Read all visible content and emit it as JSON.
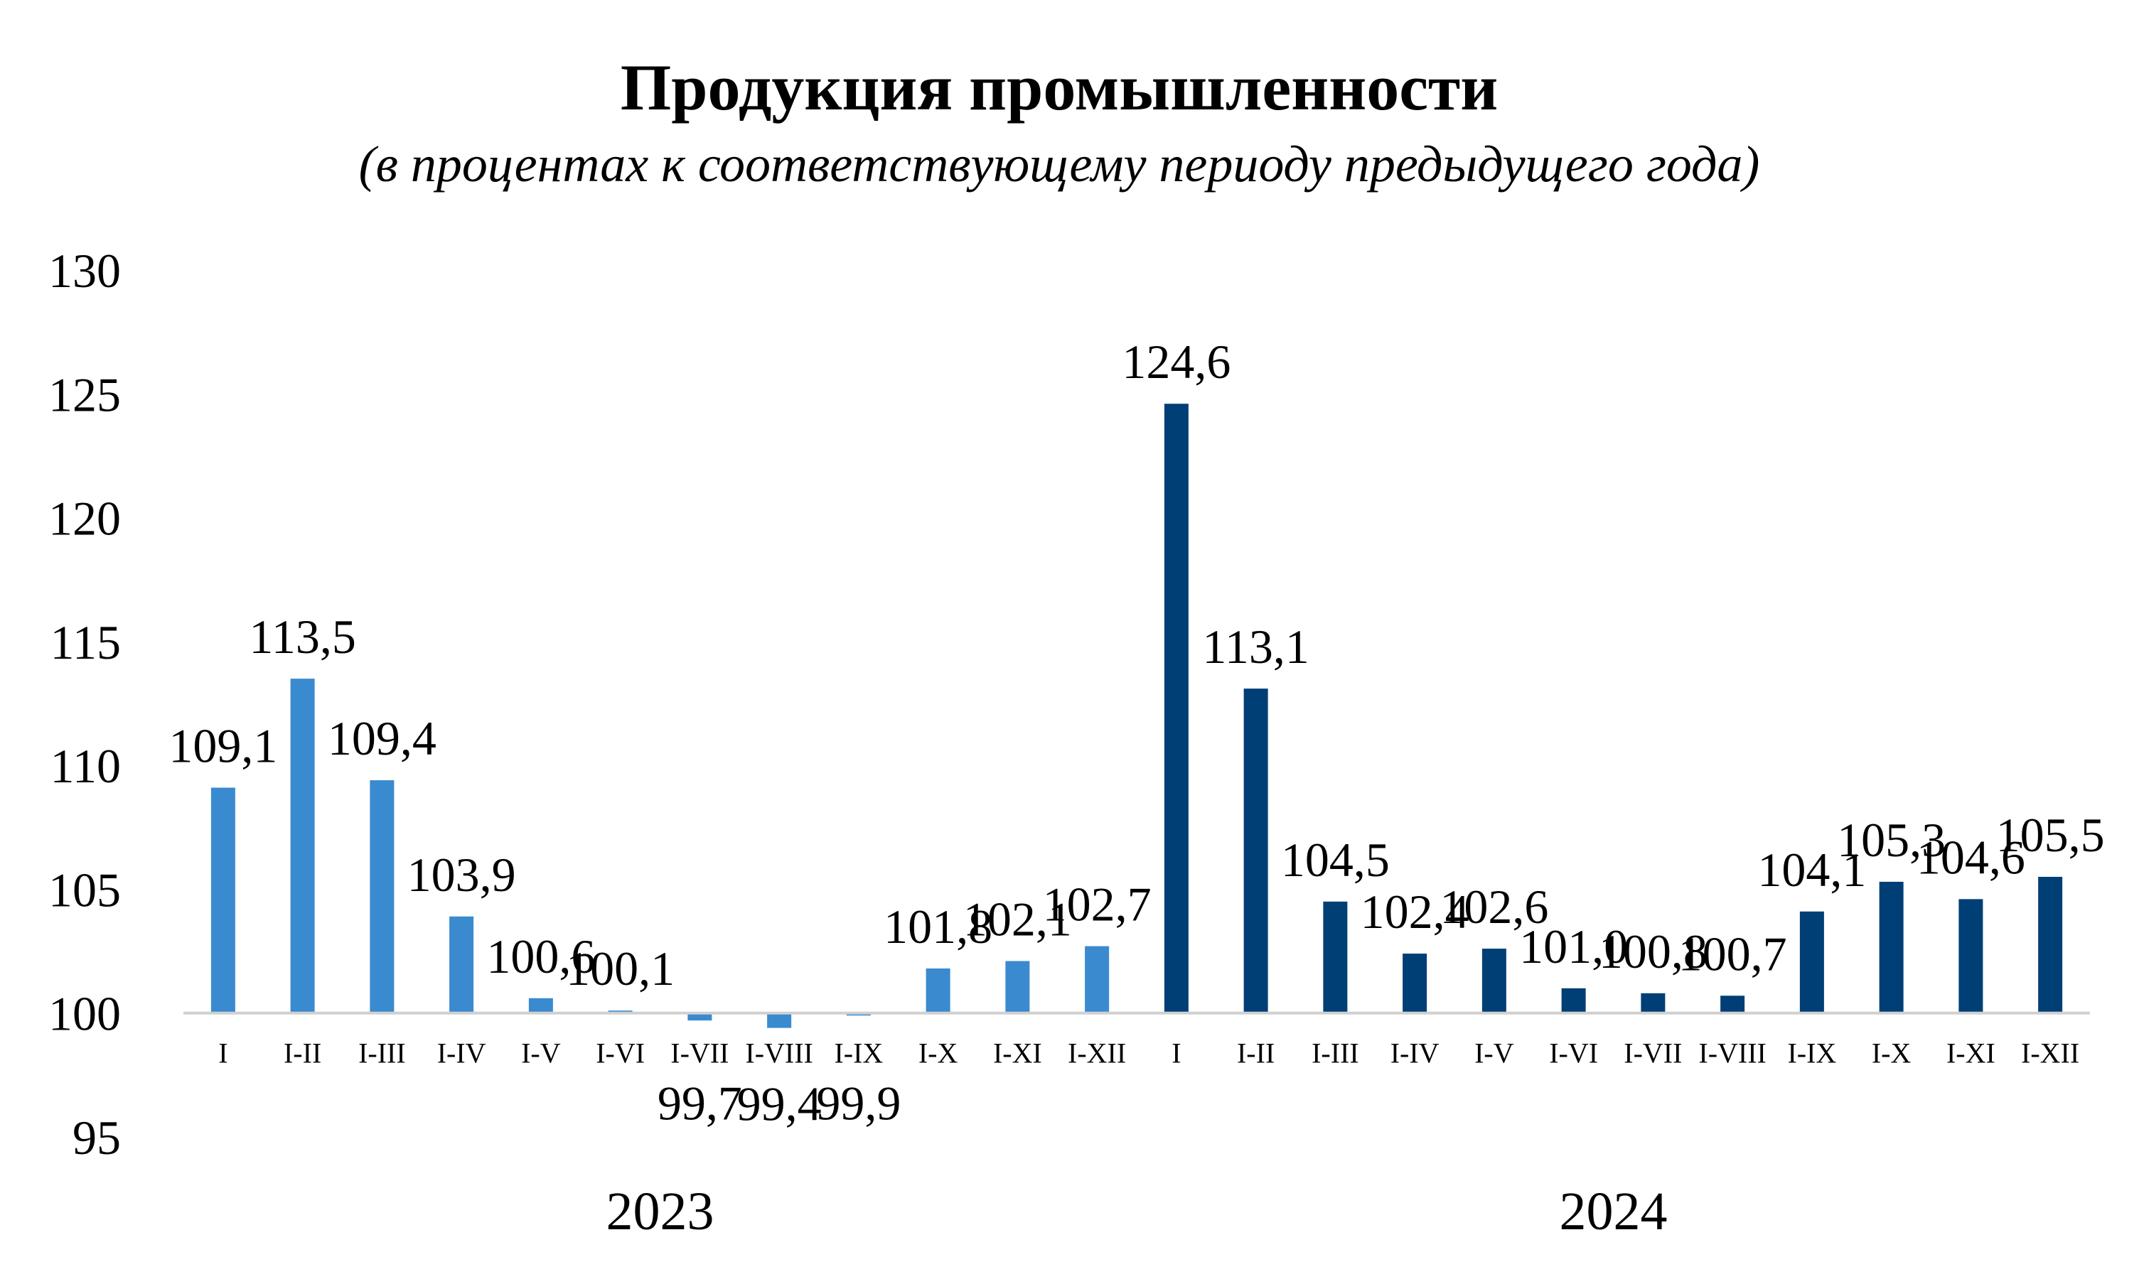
{
  "chart_data": {
    "type": "bar",
    "title": "Продукция промышленности",
    "subtitle": "(в процентах к соответствующему периоду предыдущего года)",
    "baseline": 100,
    "ylim": [
      95,
      130
    ],
    "yticks": [
      95,
      100,
      105,
      110,
      115,
      120,
      125,
      130
    ],
    "ytick_labels": [
      "95",
      "100",
      "105",
      "110",
      "115",
      "120",
      "125",
      "130"
    ],
    "grid": false,
    "legend": "none",
    "groups": [
      {
        "name": "2023",
        "color": "#3A8AD0",
        "categories": [
          "I",
          "I-II",
          "I-III",
          "I-IV",
          "I-V",
          "I-VI",
          "I-VII",
          "I-VIII",
          "I-IX",
          "I-X",
          "I-XI",
          "I-XII"
        ],
        "values": [
          109.1,
          113.5,
          109.4,
          103.9,
          100.6,
          100.1,
          99.7,
          99.4,
          99.9,
          101.8,
          102.1,
          102.7
        ],
        "labels": [
          "109,1",
          "113,5",
          "109,4",
          "103,9",
          "100,6",
          "100,1",
          "99,7",
          "99,4",
          "99,9",
          "101,8",
          "102,1",
          "102,7"
        ]
      },
      {
        "name": "2024",
        "color": "#003F75",
        "categories": [
          "I",
          "I-II",
          "I-III",
          "I-IV",
          "I-V",
          "I-VI",
          "I-VII",
          "I-VIII",
          "I-IX",
          "I-X",
          "I-XI",
          "I-XII"
        ],
        "values": [
          124.6,
          113.1,
          104.5,
          102.4,
          102.6,
          101.0,
          100.8,
          100.7,
          104.1,
          105.3,
          104.6,
          105.5
        ],
        "labels": [
          "124,6",
          "113,1",
          "104,5",
          "102,4",
          "102,6",
          "101,0",
          "100,8",
          "100,7",
          "104,1",
          "105,3",
          "104,6",
          "105,5"
        ]
      }
    ]
  }
}
